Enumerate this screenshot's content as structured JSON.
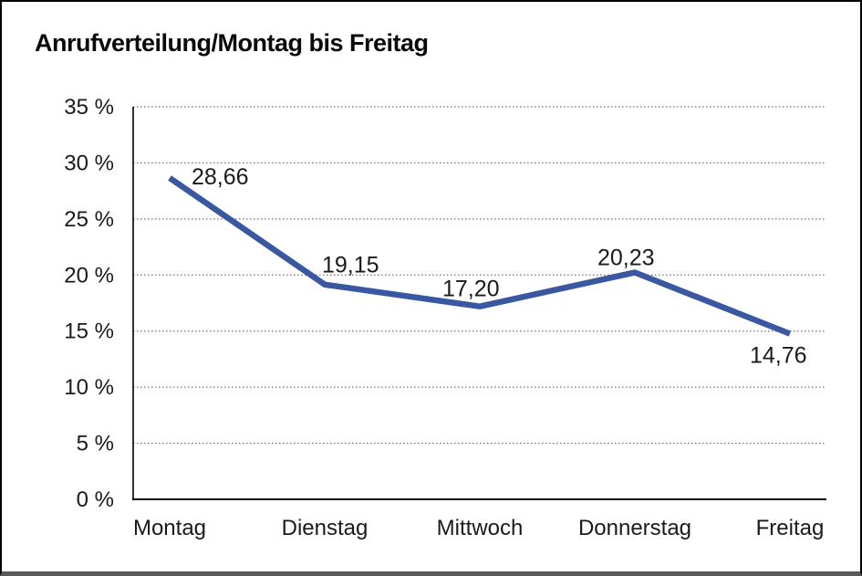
{
  "chart_data": {
    "type": "line",
    "title": "Anrufverteilung/Montag bis Freitag",
    "categories": [
      "Montag",
      "Dienstag",
      "Mittwoch",
      "Donnerstag",
      "Freitag"
    ],
    "series": [
      {
        "values": [
          28.66,
          19.15,
          17.2,
          20.23,
          14.76
        ]
      }
    ],
    "data_labels": [
      "28,66",
      "19,15",
      "17,20",
      "20,23",
      "14,76"
    ],
    "xlabel": "",
    "ylabel": "",
    "ylim": [
      0,
      35
    ],
    "y_tick_step": 5,
    "y_ticks": [
      "0 %",
      "5 %",
      "10 %",
      "15 %",
      "20 %",
      "25 %",
      "30 %",
      "35 %"
    ],
    "grid": "horizontal-dotted",
    "legend": "none",
    "decimal_separator": ",",
    "colors": {
      "line": "#3A57A2",
      "axis": "#000000",
      "grid": "#6e6e6e",
      "label": "#1a1a1a",
      "frame_border": "#000000",
      "frame_bottom": "#58595b",
      "background": "#ffffff"
    }
  }
}
